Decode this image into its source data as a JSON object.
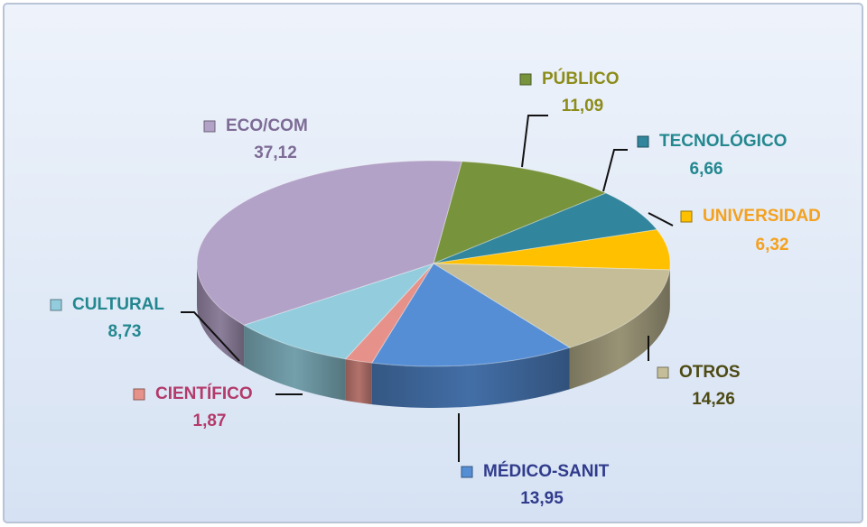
{
  "chart_data": {
    "type": "pie",
    "categories": [
      "PÚBLICO",
      "TECNOLÓGICO",
      "UNIVERSIDAD",
      "OTROS",
      "MÉDICO-SANIT",
      "CIENTÍFICO",
      "CULTURAL",
      "ECO/COM"
    ],
    "values": [
      11.09,
      6.66,
      6.32,
      14.26,
      13.95,
      1.87,
      8.73,
      37.12
    ],
    "value_labels": [
      "11,09",
      "6,66",
      "6,32",
      "14,26",
      "13,95",
      "1,87",
      "8,73",
      "37,12"
    ],
    "colors": [
      "#77933c",
      "#31859c",
      "#ffc000",
      "#c4bd97",
      "#558ed5",
      "#e6928a",
      "#93cddd",
      "#b3a2c7"
    ],
    "label_colors": [
      "#8c8c1a",
      "#23878f",
      "#f4a11f",
      "#4d4a14",
      "#303b8c",
      "#b33a6a",
      "#23878f",
      "#7d6b96"
    ]
  }
}
